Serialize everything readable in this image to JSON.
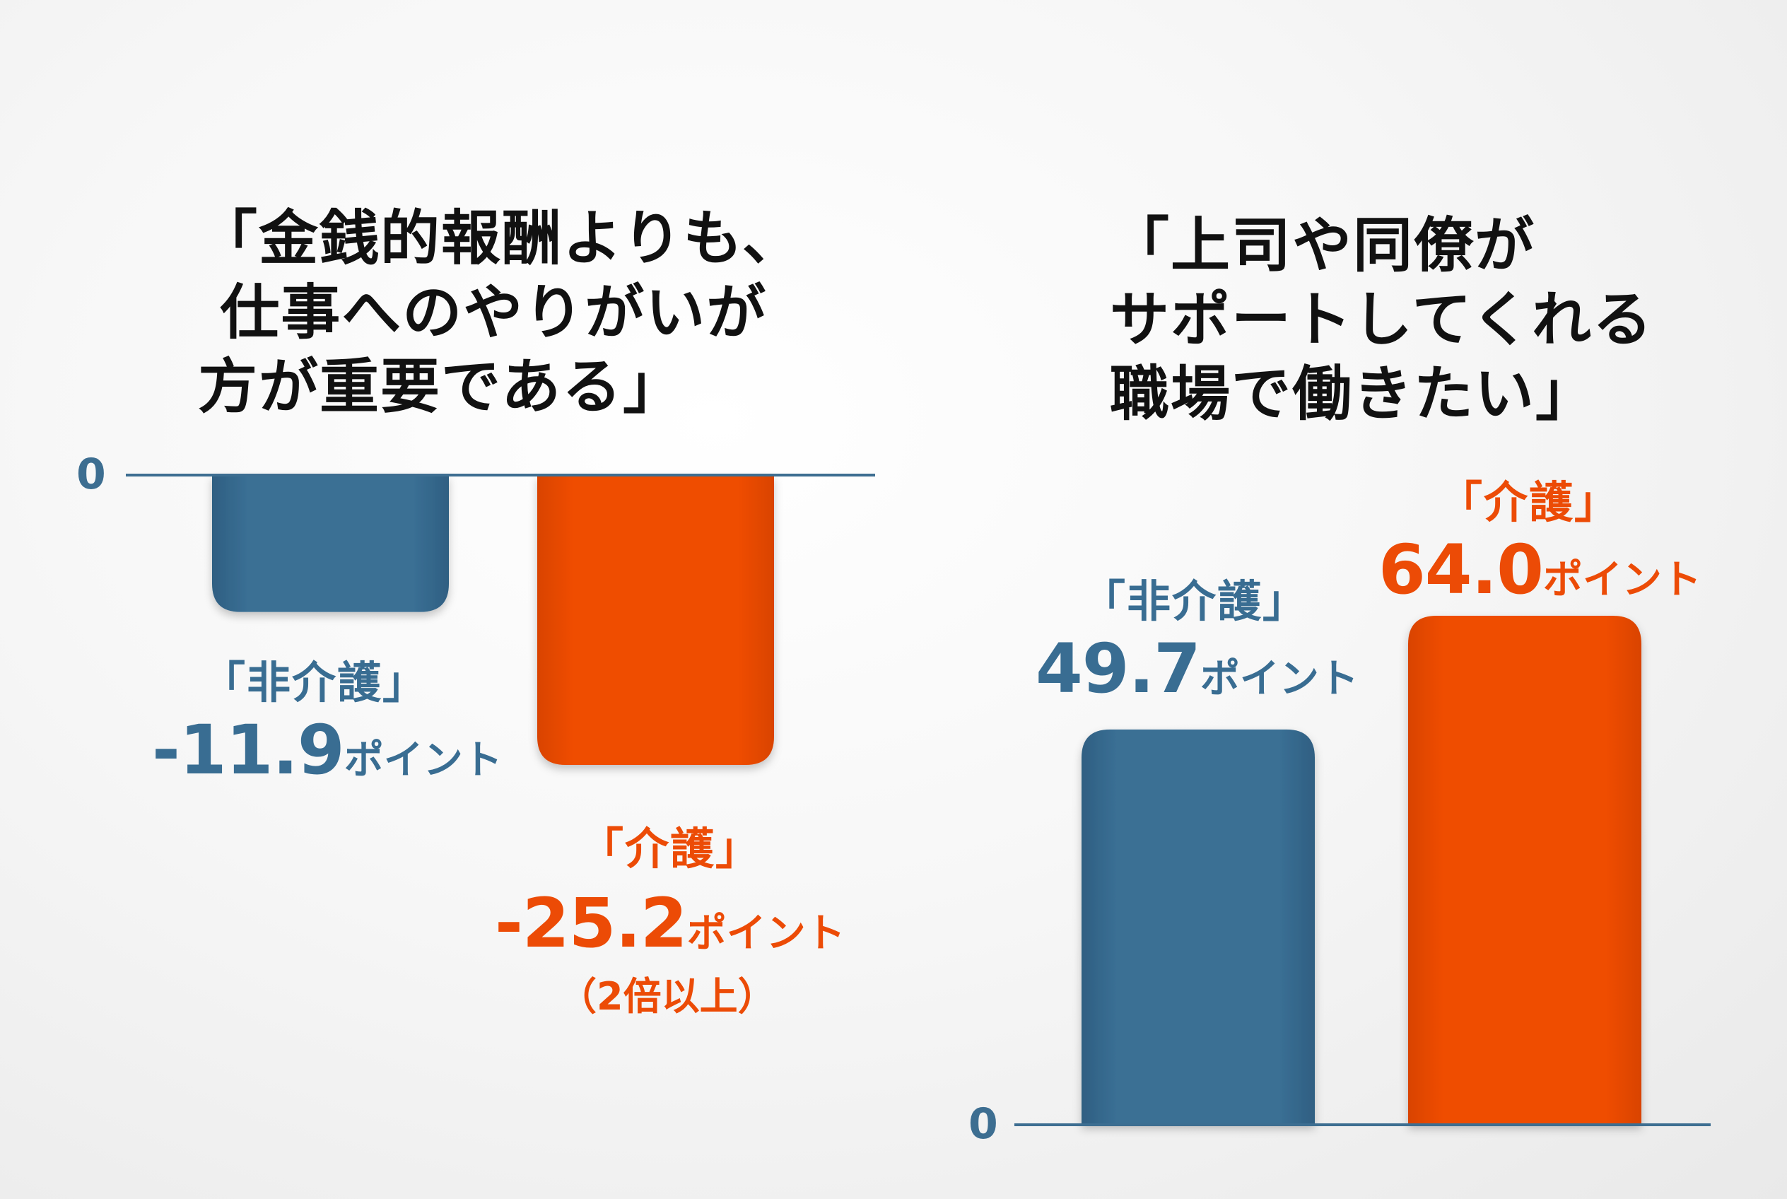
{
  "colors": {
    "non_care": "#396d92",
    "care": "#ec4b06",
    "axis": "#3d6e91",
    "title": "#111111"
  },
  "chart_data": [
    {
      "type": "bar",
      "title": "「金銭的報酬よりも、\n 仕事へのやりがいが\n方が重要である」",
      "categories": [
        "「非介護」",
        "「介護」"
      ],
      "values": [
        -11.9,
        -25.2
      ],
      "value_labels": [
        "-11.9",
        "-25.2"
      ],
      "unit": "ポイント",
      "note": "（2倍以上）",
      "zero_label": "0",
      "ylim": [
        -26,
        0
      ],
      "grid": false
    },
    {
      "type": "bar",
      "title": "「上司や同僚が\nサポートしてくれる\n職場で働きたい」",
      "categories": [
        "「非介護」",
        "「介護」"
      ],
      "values": [
        49.7,
        64.0
      ],
      "value_labels": [
        "49.7",
        "64.0"
      ],
      "unit": "ポイント",
      "zero_label": "0",
      "ylim": [
        0,
        70
      ],
      "grid": false
    }
  ]
}
